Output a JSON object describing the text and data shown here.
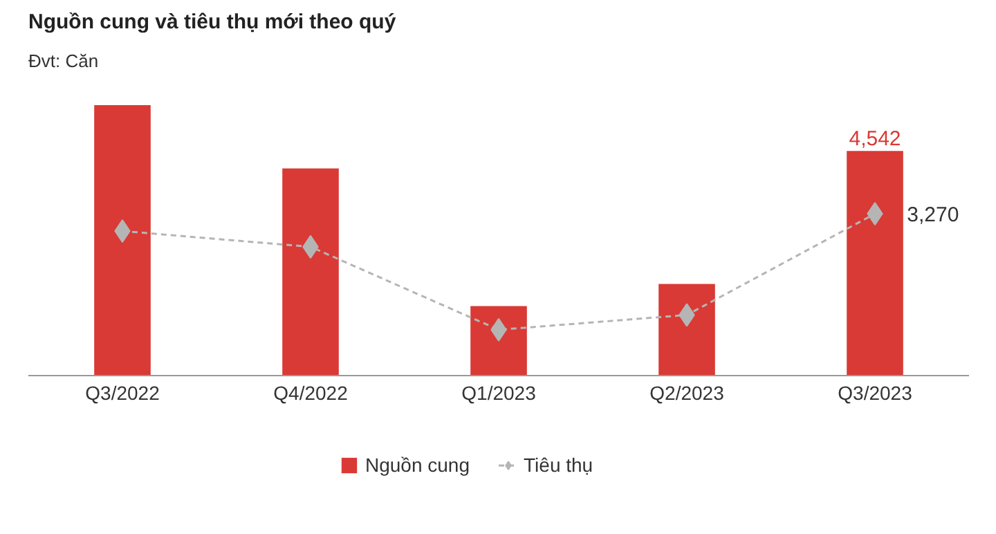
{
  "chart_data": {
    "type": "bar",
    "title": "Nguồn cung và tiêu thụ mới theo quý",
    "subtitle": "Đvt: Căn",
    "categories": [
      "Q3/2022",
      "Q4/2022",
      "Q1/2023",
      "Q2/2023",
      "Q3/2023"
    ],
    "tick_labels": "x",
    "legend": "bottom",
    "series": [
      {
        "name": "Nguồn cung",
        "color": "#d93a35",
        "values": [
          5470,
          4190,
          1400,
          1850,
          4542
        ],
        "value_labels": [
          null,
          null,
          null,
          null,
          "4,542"
        ]
      },
      {
        "name": "Tiêu thụ",
        "type": "line",
        "color": "#b5b5b5",
        "marker": "diamond",
        "line_style": "dashed",
        "values": [
          2920,
          2600,
          920,
          1220,
          3270
        ],
        "value_labels": [
          null,
          null,
          null,
          null,
          "3,270"
        ]
      }
    ]
  }
}
